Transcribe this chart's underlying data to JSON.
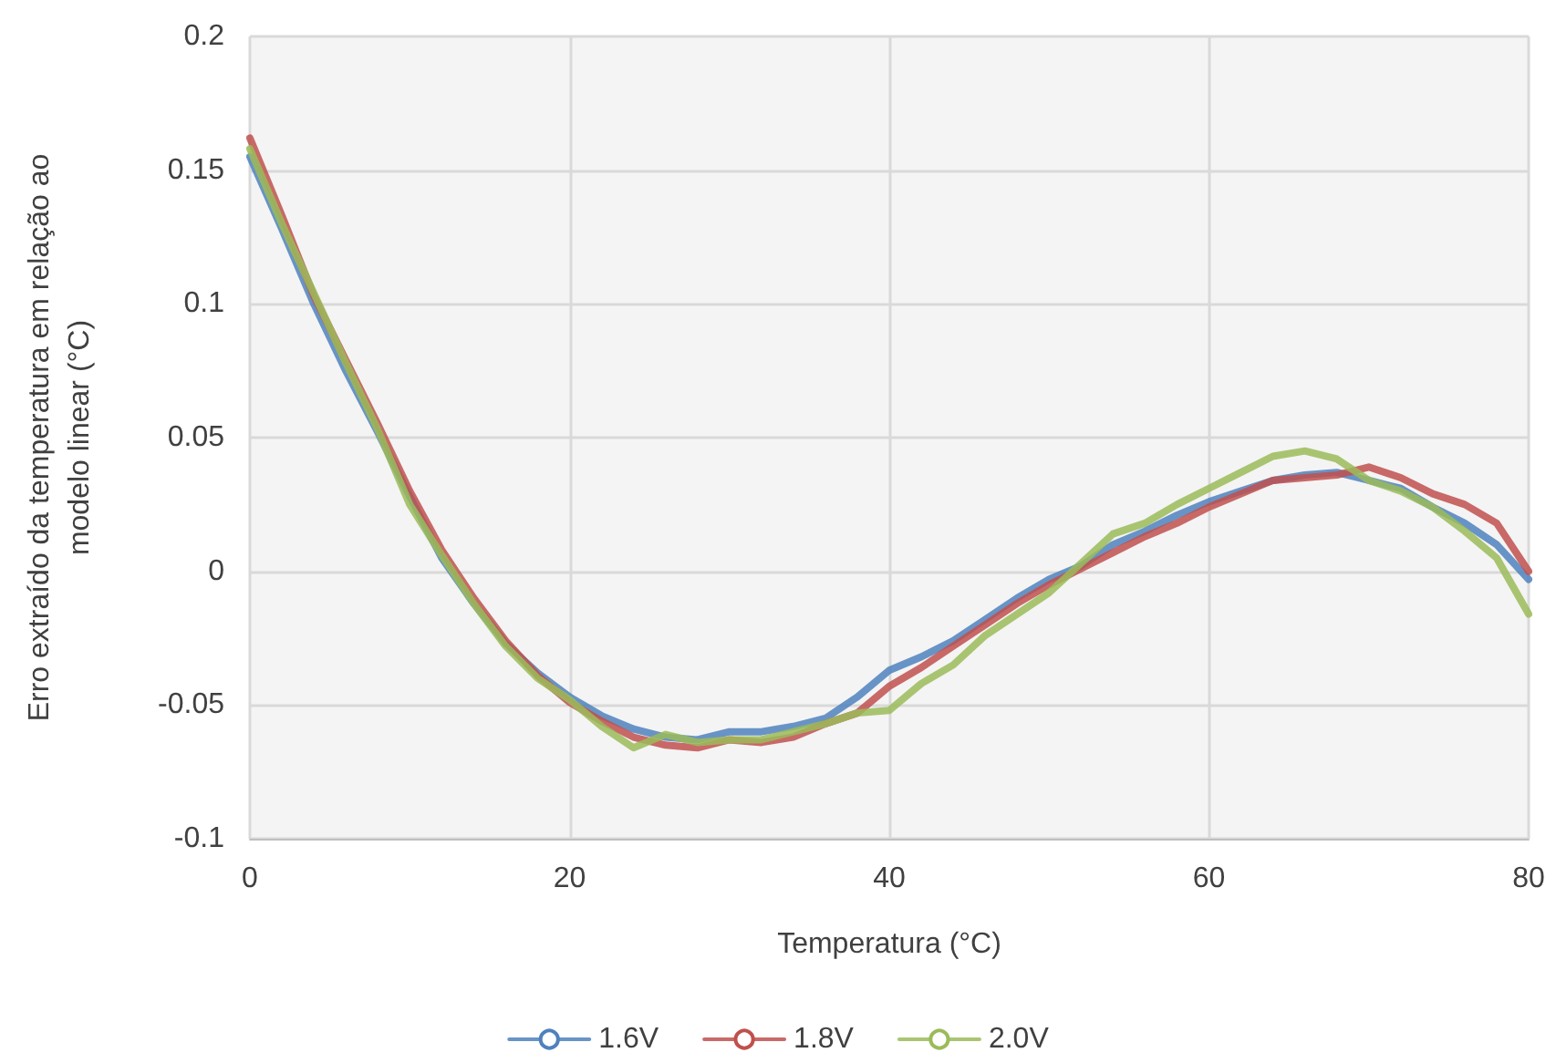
{
  "chart_data": {
    "type": "line",
    "xlabel": "Temperatura (°C)",
    "ylabel": "Erro extraído da temperatura em relação ao modelo linear (°C)",
    "x": [
      0,
      2,
      4,
      6,
      8,
      10,
      12,
      14,
      16,
      18,
      20,
      22,
      24,
      26,
      28,
      30,
      32,
      34,
      36,
      38,
      40,
      42,
      44,
      46,
      48,
      50,
      52,
      54,
      56,
      58,
      60,
      62,
      64,
      66,
      68,
      70,
      72,
      74,
      76,
      78,
      80
    ],
    "xlim": [
      0,
      80
    ],
    "xticks": [
      0,
      20,
      40,
      60,
      80
    ],
    "ylim": [
      -0.1,
      0.2
    ],
    "yticks": [
      -0.1,
      -0.05,
      0,
      0.05,
      0.1,
      0.15,
      0.2
    ],
    "grid": true,
    "legend": "bottom",
    "marker": "none",
    "line_style": "solid",
    "series": [
      {
        "name": "1.6V",
        "color": "#4f81bd",
        "values": [
          0.155,
          0.128,
          0.1,
          0.075,
          0.052,
          0.028,
          0.005,
          -0.012,
          -0.027,
          -0.038,
          -0.047,
          -0.054,
          -0.059,
          -0.062,
          -0.063,
          -0.06,
          -0.06,
          -0.058,
          -0.055,
          -0.047,
          -0.037,
          -0.032,
          -0.026,
          -0.018,
          -0.01,
          -0.003,
          0.002,
          0.01,
          0.015,
          0.021,
          0.026,
          0.03,
          0.034,
          0.036,
          0.037,
          0.034,
          0.031,
          0.024,
          0.018,
          0.01,
          -0.003
        ]
      },
      {
        "name": "1.8V",
        "color": "#c0504d",
        "values": [
          0.162,
          0.133,
          0.103,
          0.079,
          0.055,
          0.03,
          0.008,
          -0.01,
          -0.026,
          -0.039,
          -0.049,
          -0.056,
          -0.062,
          -0.065,
          -0.066,
          -0.063,
          -0.064,
          -0.062,
          -0.057,
          -0.053,
          -0.043,
          -0.036,
          -0.028,
          -0.02,
          -0.012,
          -0.005,
          0.001,
          0.007,
          0.013,
          0.018,
          0.024,
          0.029,
          0.034,
          0.035,
          0.036,
          0.039,
          0.035,
          0.029,
          0.025,
          0.018,
          0.0
        ]
      },
      {
        "name": "2.0V",
        "color": "#9bbb59",
        "values": [
          0.158,
          0.13,
          0.104,
          0.078,
          0.053,
          0.025,
          0.006,
          -0.012,
          -0.028,
          -0.04,
          -0.048,
          -0.058,
          -0.066,
          -0.061,
          -0.064,
          -0.063,
          -0.063,
          -0.06,
          -0.057,
          -0.053,
          -0.052,
          -0.042,
          -0.035,
          -0.024,
          -0.016,
          -0.008,
          0.003,
          0.014,
          0.018,
          0.025,
          0.031,
          0.037,
          0.043,
          0.045,
          0.042,
          0.034,
          0.03,
          0.024,
          0.015,
          0.005,
          -0.016
        ]
      }
    ]
  }
}
